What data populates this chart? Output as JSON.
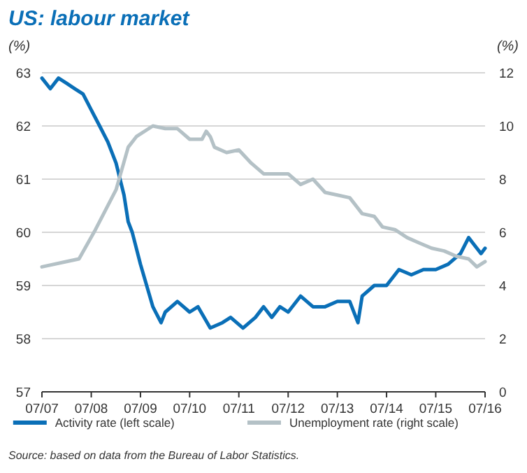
{
  "chart_data": {
    "type": "line",
    "title": "US: labour market",
    "ylabel": "(%)",
    "y2label": "(%)",
    "xlim": [
      "2007-07",
      "2016-07"
    ],
    "xticks": [
      {
        "value": "2007-07",
        "label": "07/07"
      },
      {
        "value": "2008-07",
        "label": "07/08"
      },
      {
        "value": "2009-07",
        "label": "07/09"
      },
      {
        "value": "2010-07",
        "label": "07/10"
      },
      {
        "value": "2011-07",
        "label": "07/11"
      },
      {
        "value": "2012-07",
        "label": "07/12"
      },
      {
        "value": "2013-07",
        "label": "07/13"
      },
      {
        "value": "2014-07",
        "label": "07/14"
      },
      {
        "value": "2015-07",
        "label": "07/15"
      },
      {
        "value": "2016-07",
        "label": "07/16"
      }
    ],
    "ylim": [
      57,
      63
    ],
    "yticks": [
      57,
      58,
      59,
      60,
      61,
      62,
      63
    ],
    "y2lim": [
      0,
      12
    ],
    "y2ticks": [
      0,
      2,
      4,
      6,
      8,
      10,
      12
    ],
    "grid": "y",
    "legend": "bottom",
    "line_style": "solid",
    "series": [
      {
        "name": "Activity rate (left scale)",
        "color": "#0a6fb7",
        "x": [
          "2007-07",
          "2007-09",
          "2007-11",
          "2008-01",
          "2008-03",
          "2008-05",
          "2008-07",
          "2008-09",
          "2008-11",
          "2009-01",
          "2009-03",
          "2009-04",
          "2009-05",
          "2009-07",
          "2009-10",
          "2009-12",
          "2010-01",
          "2010-04",
          "2010-07",
          "2010-09",
          "2010-12",
          "2011-03",
          "2011-05",
          "2011-08",
          "2011-11",
          "2012-01",
          "2012-03",
          "2012-05",
          "2012-07",
          "2012-10",
          "2013-01",
          "2013-04",
          "2013-07",
          "2013-10",
          "2013-12",
          "2014-01",
          "2014-04",
          "2014-07",
          "2014-10",
          "2015-01",
          "2015-04",
          "2015-07",
          "2015-10",
          "2016-01",
          "2016-03",
          "2016-05",
          "2016-06",
          "2016-07"
        ],
        "values": [
          62.9,
          62.7,
          62.9,
          62.8,
          62.7,
          62.6,
          62.3,
          62.0,
          61.7,
          61.3,
          60.7,
          60.2,
          60.0,
          59.4,
          58.6,
          58.3,
          58.5,
          58.7,
          58.5,
          58.6,
          58.2,
          58.3,
          58.4,
          58.2,
          58.4,
          58.6,
          58.4,
          58.6,
          58.5,
          58.8,
          58.6,
          58.6,
          58.7,
          58.7,
          58.3,
          58.8,
          59.0,
          59.0,
          59.3,
          59.2,
          59.3,
          59.3,
          59.4,
          59.6,
          59.9,
          59.7,
          59.6,
          59.7
        ]
      },
      {
        "name": "Unemployment rate (right scale)",
        "color": "#b4c1c6",
        "axis": "y2",
        "x": [
          "2007-07",
          "2008-01",
          "2008-04",
          "2008-08",
          "2009-01",
          "2009-04",
          "2009-06",
          "2009-10",
          "2010-01",
          "2010-04",
          "2010-07",
          "2010-10",
          "2010-11",
          "2010-12",
          "2011-01",
          "2011-04",
          "2011-07",
          "2011-10",
          "2012-01",
          "2012-04",
          "2012-07",
          "2012-10",
          "2013-01",
          "2013-04",
          "2013-07",
          "2013-10",
          "2014-01",
          "2014-04",
          "2014-06",
          "2014-09",
          "2014-12",
          "2015-03",
          "2015-06",
          "2015-09",
          "2015-12",
          "2016-03",
          "2016-05",
          "2016-07"
        ],
        "values": [
          4.7,
          4.9,
          5.0,
          6.1,
          7.6,
          9.2,
          9.6,
          10.0,
          9.9,
          9.9,
          9.5,
          9.5,
          9.8,
          9.6,
          9.2,
          9.0,
          9.1,
          8.6,
          8.2,
          8.2,
          8.2,
          7.8,
          8.0,
          7.5,
          7.4,
          7.3,
          6.7,
          6.6,
          6.2,
          6.1,
          5.8,
          5.6,
          5.4,
          5.3,
          5.1,
          5.0,
          4.7,
          4.9
        ]
      }
    ],
    "annotations": [
      "Source: based on data from the Bureau of Labor Statistics."
    ]
  }
}
